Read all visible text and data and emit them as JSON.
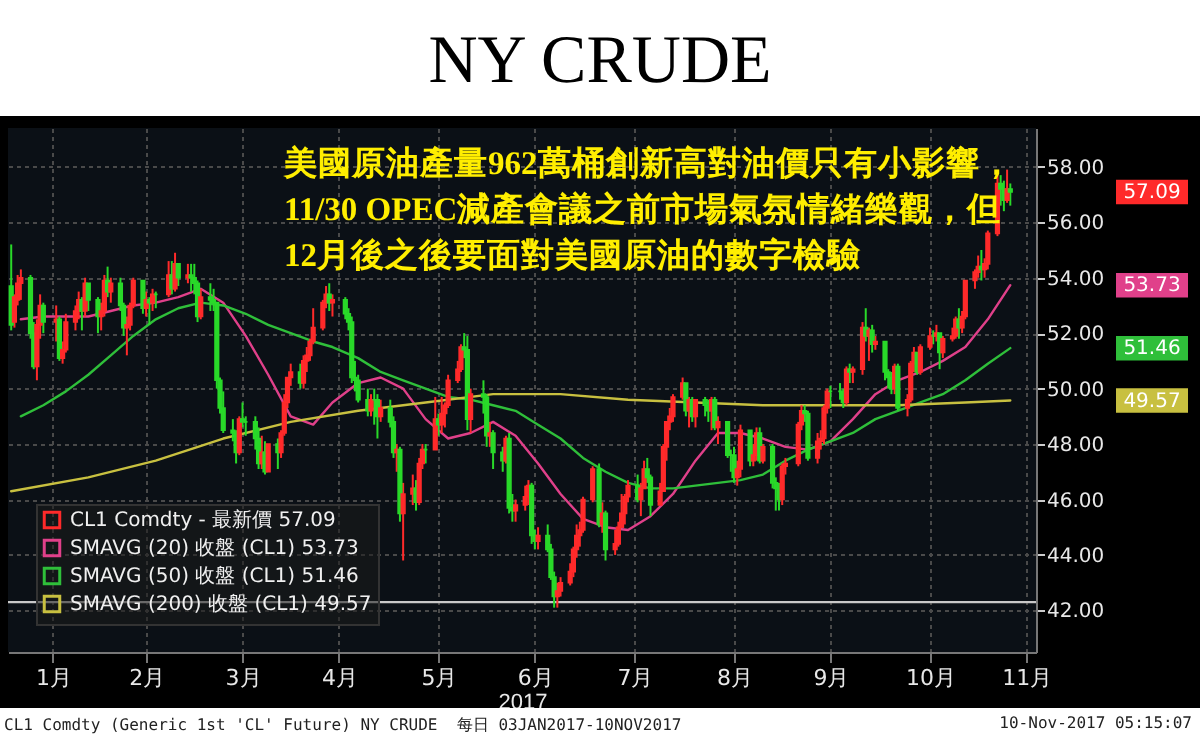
{
  "chart_data": {
    "type": "candlestick",
    "title": "NY CRUDE",
    "xlabel": "2017",
    "annotations": [
      "美國原油產量962萬桶創新高對油價只有小影響，\n11/30 OPEC減產會議之前市場氣氛情緒樂觀，但\n12月後之後要面對美國原油的數字檢驗",
      "CL1 Comdty (Generic 1st 'CL' Future) NY CRUDE  每日 03JAN2017-10NOV2017",
      "10-Nov-2017 05:15:07",
      "57.09",
      "53.73",
      "51.46",
      "49.57"
    ],
    "xlim": [
      "2017-01-02",
      "2017-11-18"
    ],
    "xticks": [
      {
        "value": "2017-01-16",
        "label": "1月"
      },
      {
        "value": "2017-02-14",
        "label": "2月"
      },
      {
        "value": "2017-03-16",
        "label": "3月"
      },
      {
        "value": "2017-04-15",
        "label": "4月"
      },
      {
        "value": "2017-05-16",
        "label": "5月"
      },
      {
        "value": "2017-06-15",
        "label": "6月"
      },
      {
        "value": "2017-07-16",
        "label": "7月"
      },
      {
        "value": "2017-08-16",
        "label": "8月"
      },
      {
        "value": "2017-09-15",
        "label": "9月"
      },
      {
        "value": "2017-10-16",
        "label": "10月"
      },
      {
        "value": "2017-11-15",
        "label": "11月"
      }
    ],
    "ylim": [
      40.5,
      59.4
    ],
    "yticks": [
      {
        "value": 42,
        "label": "42.00"
      },
      {
        "value": 44,
        "label": "44.00"
      },
      {
        "value": 46,
        "label": "46.00"
      },
      {
        "value": 48,
        "label": "48.00"
      },
      {
        "value": 50,
        "label": "50.00"
      },
      {
        "value": 52,
        "label": "52.00"
      },
      {
        "value": 54,
        "label": "54.00"
      },
      {
        "value": 56,
        "label": "56.00"
      },
      {
        "value": 58,
        "label": "58.00"
      }
    ],
    "grid": true,
    "legend": "bottom left",
    "ref_lines": [
      {
        "axis": "y",
        "value": 42.3,
        "color": "#c8c8c8"
      }
    ],
    "series": [
      {
        "type": "candlestick",
        "name": "CL1 Comdty - 最新價 57.09",
        "color": "#ff2a2a",
        "x": [
          "2017-01-03",
          "2017-01-04",
          "2017-01-05",
          "2017-01-06",
          "2017-01-09",
          "2017-01-10",
          "2017-01-11",
          "2017-01-12",
          "2017-01-13",
          "2017-01-17",
          "2017-01-18",
          "2017-01-19",
          "2017-01-20",
          "2017-01-23",
          "2017-01-24",
          "2017-01-25",
          "2017-01-26",
          "2017-01-27",
          "2017-01-30",
          "2017-01-31",
          "2017-02-01",
          "2017-02-02",
          "2017-02-03",
          "2017-02-06",
          "2017-02-07",
          "2017-02-08",
          "2017-02-09",
          "2017-02-10",
          "2017-02-13",
          "2017-02-14",
          "2017-02-15",
          "2017-02-16",
          "2017-02-17",
          "2017-02-21",
          "2017-02-22",
          "2017-02-23",
          "2017-02-24",
          "2017-02-27",
          "2017-02-28",
          "2017-03-01",
          "2017-03-02",
          "2017-03-03",
          "2017-03-06",
          "2017-03-07",
          "2017-03-08",
          "2017-03-09",
          "2017-03-10",
          "2017-03-13",
          "2017-03-14",
          "2017-03-15",
          "2017-03-16",
          "2017-03-17",
          "2017-03-20",
          "2017-03-21",
          "2017-03-22",
          "2017-03-23",
          "2017-03-24",
          "2017-03-27",
          "2017-03-28",
          "2017-03-29",
          "2017-03-30",
          "2017-03-31",
          "2017-04-03",
          "2017-04-04",
          "2017-04-05",
          "2017-04-06",
          "2017-04-07",
          "2017-04-10",
          "2017-04-11",
          "2017-04-12",
          "2017-04-13",
          "2017-04-17",
          "2017-04-18",
          "2017-04-19",
          "2017-04-20",
          "2017-04-21",
          "2017-04-24",
          "2017-04-25",
          "2017-04-26",
          "2017-04-27",
          "2017-04-28",
          "2017-05-01",
          "2017-05-02",
          "2017-05-03",
          "2017-05-04",
          "2017-05-05",
          "2017-05-08",
          "2017-05-09",
          "2017-05-10",
          "2017-05-11",
          "2017-05-12",
          "2017-05-15",
          "2017-05-16",
          "2017-05-17",
          "2017-05-18",
          "2017-05-19",
          "2017-05-22",
          "2017-05-23",
          "2017-05-24",
          "2017-05-25",
          "2017-05-26",
          "2017-05-30",
          "2017-05-31",
          "2017-06-01",
          "2017-06-02",
          "2017-06-05",
          "2017-06-06",
          "2017-06-07",
          "2017-06-08",
          "2017-06-09",
          "2017-06-12",
          "2017-06-13",
          "2017-06-14",
          "2017-06-15",
          "2017-06-16",
          "2017-06-19",
          "2017-06-20",
          "2017-06-21",
          "2017-06-22",
          "2017-06-23",
          "2017-06-26",
          "2017-06-27",
          "2017-06-28",
          "2017-06-29",
          "2017-06-30",
          "2017-07-03",
          "2017-07-05",
          "2017-07-06",
          "2017-07-07",
          "2017-07-10",
          "2017-07-11",
          "2017-07-12",
          "2017-07-13",
          "2017-07-14",
          "2017-07-17",
          "2017-07-18",
          "2017-07-19",
          "2017-07-20",
          "2017-07-21",
          "2017-07-24",
          "2017-07-25",
          "2017-07-26",
          "2017-07-27",
          "2017-07-28",
          "2017-07-31",
          "2017-08-01",
          "2017-08-02",
          "2017-08-03",
          "2017-08-04",
          "2017-08-07",
          "2017-08-08",
          "2017-08-09",
          "2017-08-10",
          "2017-08-11",
          "2017-08-14",
          "2017-08-15",
          "2017-08-16",
          "2017-08-17",
          "2017-08-18",
          "2017-08-21",
          "2017-08-22",
          "2017-08-23",
          "2017-08-24",
          "2017-08-25",
          "2017-08-28",
          "2017-08-29",
          "2017-08-30",
          "2017-08-31",
          "2017-09-01",
          "2017-09-05",
          "2017-09-06",
          "2017-09-07",
          "2017-09-08",
          "2017-09-11",
          "2017-09-12",
          "2017-09-13",
          "2017-09-14",
          "2017-09-15",
          "2017-09-18",
          "2017-09-19",
          "2017-09-20",
          "2017-09-21",
          "2017-09-22",
          "2017-09-25",
          "2017-09-26",
          "2017-09-27",
          "2017-09-28",
          "2017-09-29",
          "2017-10-02",
          "2017-10-03",
          "2017-10-04",
          "2017-10-05",
          "2017-10-06",
          "2017-10-09",
          "2017-10-10",
          "2017-10-11",
          "2017-10-12",
          "2017-10-13",
          "2017-10-16",
          "2017-10-17",
          "2017-10-18",
          "2017-10-19",
          "2017-10-20",
          "2017-10-23",
          "2017-10-24",
          "2017-10-25",
          "2017-10-26",
          "2017-10-27",
          "2017-10-30",
          "2017-10-31",
          "2017-11-01",
          "2017-11-02",
          "2017-11-03",
          "2017-11-06",
          "2017-11-07",
          "2017-11-08",
          "2017-11-09",
          "2017-11-10"
        ],
        "ohlc": [
          [
            53.7,
            55.2,
            52.1,
            52.3
          ],
          [
            52.4,
            53.4,
            52.2,
            53.3
          ],
          [
            53.2,
            54.1,
            53.0,
            53.8
          ],
          [
            53.8,
            54.3,
            53.2,
            54.0
          ],
          [
            54.0,
            54.1,
            51.8,
            52.0
          ],
          [
            52.0,
            52.4,
            50.7,
            50.8
          ],
          [
            50.8,
            52.5,
            50.3,
            52.3
          ],
          [
            52.3,
            53.4,
            51.8,
            53.0
          ],
          [
            53.0,
            53.1,
            52.0,
            52.4
          ],
          [
            52.4,
            53.0,
            51.7,
            52.5
          ],
          [
            52.5,
            52.6,
            51.0,
            51.1
          ],
          [
            51.1,
            51.7,
            50.9,
            51.4
          ],
          [
            51.4,
            52.7,
            51.3,
            52.4
          ],
          [
            52.4,
            53.0,
            52.1,
            52.8
          ],
          [
            52.8,
            53.5,
            52.5,
            53.2
          ],
          [
            53.2,
            53.3,
            52.1,
            52.8
          ],
          [
            52.8,
            54.0,
            52.6,
            53.8
          ],
          [
            53.8,
            53.8,
            52.8,
            53.2
          ],
          [
            53.2,
            53.3,
            52.0,
            52.6
          ],
          [
            52.6,
            53.1,
            52.1,
            52.8
          ],
          [
            52.8,
            54.1,
            52.6,
            53.9
          ],
          [
            53.9,
            54.4,
            53.3,
            53.5
          ],
          [
            53.5,
            54.0,
            53.1,
            53.8
          ],
          [
            53.8,
            54.0,
            52.8,
            53.0
          ],
          [
            53.0,
            53.1,
            51.9,
            52.2
          ],
          [
            52.2,
            52.6,
            51.2,
            52.3
          ],
          [
            52.3,
            53.1,
            52.1,
            53.0
          ],
          [
            53.0,
            54.0,
            52.9,
            53.9
          ],
          [
            53.9,
            53.9,
            52.7,
            52.9
          ],
          [
            52.9,
            53.5,
            52.6,
            53.2
          ],
          [
            53.2,
            53.3,
            52.3,
            53.1
          ],
          [
            53.1,
            53.6,
            52.8,
            53.4
          ],
          [
            53.4,
            53.5,
            52.9,
            53.4
          ],
          [
            53.4,
            54.6,
            53.3,
            54.1
          ],
          [
            54.1,
            54.6,
            53.4,
            53.6
          ],
          [
            53.6,
            54.9,
            53.5,
            54.5
          ],
          [
            54.5,
            54.5,
            53.7,
            54.0
          ],
          [
            54.0,
            54.5,
            53.8,
            54.1
          ],
          [
            54.1,
            54.5,
            53.5,
            54.0
          ],
          [
            54.0,
            54.5,
            53.4,
            53.8
          ],
          [
            53.8,
            53.9,
            52.4,
            52.6
          ],
          [
            52.6,
            53.6,
            52.5,
            53.3
          ],
          [
            53.3,
            53.8,
            52.8,
            53.2
          ],
          [
            53.2,
            53.6,
            52.8,
            53.1
          ],
          [
            53.1,
            53.1,
            50.0,
            50.3
          ],
          [
            50.3,
            50.4,
            49.1,
            49.3
          ],
          [
            49.3,
            49.9,
            48.4,
            48.5
          ],
          [
            48.5,
            48.9,
            48.1,
            48.4
          ],
          [
            48.4,
            48.5,
            47.3,
            47.7
          ],
          [
            47.7,
            49.0,
            47.6,
            48.9
          ],
          [
            48.9,
            49.5,
            48.6,
            48.8
          ],
          [
            48.8,
            49.0,
            48.3,
            48.8
          ],
          [
            48.8,
            49.0,
            47.8,
            48.2
          ],
          [
            48.2,
            48.6,
            47.1,
            47.3
          ],
          [
            47.3,
            48.3,
            47.1,
            47.7
          ],
          [
            47.7,
            48.1,
            46.9,
            47.0
          ],
          [
            47.0,
            48.0,
            47.0,
            48.0
          ],
          [
            48.0,
            48.2,
            47.1,
            47.7
          ],
          [
            47.7,
            48.5,
            47.5,
            48.4
          ],
          [
            48.4,
            49.8,
            48.3,
            49.5
          ],
          [
            49.5,
            50.4,
            49.3,
            50.4
          ],
          [
            50.4,
            50.9,
            50.1,
            50.6
          ],
          [
            50.6,
            50.9,
            50.0,
            50.2
          ],
          [
            50.2,
            51.2,
            50.0,
            51.0
          ],
          [
            51.0,
            51.5,
            50.6,
            51.2
          ],
          [
            51.2,
            51.8,
            51.0,
            51.7
          ],
          [
            51.7,
            52.9,
            51.6,
            52.2
          ],
          [
            52.2,
            53.2,
            52.1,
            53.1
          ],
          [
            53.1,
            53.7,
            52.9,
            53.4
          ],
          [
            53.4,
            53.8,
            52.8,
            53.1
          ],
          [
            53.1,
            53.4,
            52.6,
            53.2
          ],
          [
            53.2,
            53.3,
            52.5,
            52.7
          ],
          [
            52.7,
            52.9,
            52.1,
            52.4
          ],
          [
            52.4,
            52.6,
            50.2,
            50.4
          ],
          [
            50.4,
            51.0,
            49.9,
            50.3
          ],
          [
            50.3,
            50.5,
            49.5,
            49.6
          ],
          [
            49.6,
            50.0,
            49.0,
            49.2
          ],
          [
            49.2,
            49.8,
            49.0,
            49.6
          ],
          [
            49.6,
            50.0,
            48.7,
            49.6
          ],
          [
            49.6,
            49.8,
            48.2,
            49.0
          ],
          [
            49.0,
            49.6,
            48.8,
            49.3
          ],
          [
            49.3,
            49.6,
            48.6,
            48.8
          ],
          [
            48.8,
            49.0,
            47.5,
            47.7
          ],
          [
            47.7,
            48.0,
            47.0,
            47.8
          ],
          [
            47.8,
            47.9,
            45.2,
            45.5
          ],
          [
            45.5,
            46.6,
            43.8,
            46.2
          ],
          [
            46.2,
            46.9,
            45.8,
            46.4
          ],
          [
            46.4,
            46.7,
            45.6,
            45.9
          ],
          [
            45.9,
            47.5,
            45.8,
            47.3
          ],
          [
            47.3,
            48.0,
            47.1,
            47.8
          ],
          [
            47.8,
            48.0,
            47.3,
            47.8
          ],
          [
            47.8,
            49.7,
            47.8,
            48.9
          ],
          [
            48.9,
            49.1,
            48.3,
            48.7
          ],
          [
            48.7,
            49.7,
            48.4,
            49.1
          ],
          [
            49.1,
            49.5,
            48.6,
            49.4
          ],
          [
            49.4,
            50.5,
            49.3,
            50.3
          ],
          [
            50.3,
            51.0,
            50.2,
            50.7
          ],
          [
            50.7,
            51.6,
            50.6,
            51.5
          ],
          [
            51.5,
            52.0,
            51.1,
            51.4
          ],
          [
            51.4,
            51.9,
            48.5,
            48.9
          ],
          [
            48.9,
            50.0,
            48.4,
            49.8
          ],
          [
            49.8,
            50.3,
            49.1,
            49.7
          ],
          [
            49.7,
            49.8,
            47.9,
            48.3
          ],
          [
            48.3,
            48.8,
            47.9,
            48.4
          ],
          [
            48.4,
            48.5,
            47.1,
            47.7
          ],
          [
            47.7,
            47.9,
            47.0,
            47.4
          ],
          [
            47.4,
            48.3,
            47.3,
            48.2
          ],
          [
            48.2,
            48.4,
            45.5,
            45.7
          ],
          [
            45.7,
            46.2,
            45.2,
            45.6
          ],
          [
            45.6,
            46.0,
            45.2,
            45.8
          ],
          [
            45.8,
            46.5,
            45.6,
            46.1
          ],
          [
            46.1,
            46.7,
            45.8,
            46.5
          ],
          [
            46.5,
            46.6,
            44.4,
            44.7
          ],
          [
            44.7,
            44.9,
            44.2,
            44.5
          ],
          [
            44.5,
            45.0,
            44.2,
            44.7
          ],
          [
            44.7,
            45.1,
            44.1,
            44.2
          ],
          [
            44.2,
            44.4,
            43.1,
            43.2
          ],
          [
            43.2,
            43.4,
            42.1,
            42.5
          ],
          [
            42.5,
            43.0,
            42.1,
            42.7
          ],
          [
            42.7,
            43.2,
            42.5,
            43.0
          ],
          [
            43.0,
            43.7,
            42.9,
            43.4
          ],
          [
            43.4,
            44.3,
            43.2,
            44.2
          ],
          [
            44.2,
            45.1,
            43.9,
            44.7
          ],
          [
            44.7,
            45.2,
            44.3,
            44.9
          ],
          [
            44.9,
            46.1,
            44.8,
            46.0
          ],
          [
            46.0,
            47.2,
            45.9,
            47.1
          ],
          [
            47.1,
            47.3,
            45.0,
            45.1
          ],
          [
            45.1,
            45.9,
            44.8,
            45.5
          ],
          [
            45.5,
            45.6,
            43.8,
            44.2
          ],
          [
            44.2,
            44.9,
            44.0,
            44.4
          ],
          [
            44.4,
            45.2,
            44.3,
            45.0
          ],
          [
            45.0,
            46.2,
            45.0,
            45.5
          ],
          [
            45.5,
            46.2,
            45.1,
            46.1
          ],
          [
            46.1,
            46.7,
            45.9,
            46.5
          ],
          [
            46.5,
            46.9,
            45.9,
            46.0
          ],
          [
            46.0,
            46.6,
            45.4,
            46.4
          ],
          [
            46.4,
            47.4,
            46.4,
            47.1
          ],
          [
            47.1,
            47.5,
            46.6,
            46.8
          ],
          [
            46.8,
            46.9,
            45.4,
            45.8
          ],
          [
            45.8,
            46.6,
            45.8,
            46.3
          ],
          [
            46.3,
            48.0,
            46.3,
            47.9
          ],
          [
            47.9,
            48.8,
            47.4,
            48.8
          ],
          [
            48.8,
            49.3,
            48.5,
            49.0
          ],
          [
            49.0,
            49.8,
            48.8,
            49.7
          ],
          [
            49.7,
            50.4,
            49.6,
            50.2
          ],
          [
            50.2,
            50.2,
            49.0,
            49.2
          ],
          [
            49.2,
            49.7,
            48.6,
            49.6
          ],
          [
            49.6,
            49.7,
            48.8,
            49.0
          ],
          [
            49.0,
            49.6,
            48.6,
            49.6
          ],
          [
            49.6,
            49.7,
            49.0,
            49.4
          ],
          [
            49.4,
            49.6,
            48.8,
            49.2
          ],
          [
            49.2,
            49.7,
            48.5,
            49.6
          ],
          [
            49.6,
            49.7,
            48.5,
            48.6
          ],
          [
            48.6,
            49.0,
            48.0,
            48.8
          ],
          [
            48.8,
            48.8,
            47.5,
            47.6
          ],
          [
            47.6,
            47.8,
            47.0,
            47.6
          ],
          [
            47.6,
            47.9,
            46.6,
            46.8
          ],
          [
            46.8,
            47.4,
            46.5,
            47.1
          ],
          [
            47.1,
            48.7,
            46.8,
            48.5
          ],
          [
            48.5,
            48.5,
            47.2,
            47.4
          ],
          [
            47.4,
            48.0,
            47.2,
            47.6
          ],
          [
            47.6,
            48.6,
            47.4,
            48.4
          ],
          [
            48.4,
            48.6,
            47.3,
            47.4
          ],
          [
            47.4,
            48.0,
            47.3,
            47.9
          ],
          [
            47.9,
            48.0,
            46.4,
            46.6
          ],
          [
            46.6,
            46.8,
            45.6,
            46.4
          ],
          [
            46.4,
            46.6,
            45.6,
            46.0
          ],
          [
            46.0,
            47.3,
            45.8,
            47.2
          ],
          [
            47.2,
            47.5,
            46.9,
            47.3
          ],
          [
            47.3,
            48.8,
            47.2,
            48.7
          ],
          [
            48.7,
            49.4,
            48.5,
            49.2
          ],
          [
            49.2,
            49.4,
            48.8,
            49.1
          ],
          [
            49.1,
            49.2,
            47.4,
            47.5
          ],
          [
            47.5,
            48.4,
            47.3,
            48.1
          ],
          [
            48.1,
            48.5,
            47.8,
            48.2
          ],
          [
            48.2,
            49.4,
            48.0,
            49.3
          ],
          [
            49.3,
            50.0,
            49.1,
            49.9
          ],
          [
            49.9,
            50.1,
            49.3,
            49.9
          ],
          [
            49.9,
            50.2,
            49.6,
            49.9
          ],
          [
            49.9,
            50.0,
            49.3,
            49.5
          ],
          [
            49.5,
            50.8,
            49.4,
            50.7
          ],
          [
            50.7,
            50.9,
            50.2,
            50.6
          ],
          [
            50.6,
            50.8,
            50.2,
            50.7
          ],
          [
            50.7,
            52.4,
            50.5,
            52.2
          ],
          [
            52.2,
            52.9,
            51.7,
            51.9
          ],
          [
            51.9,
            52.2,
            51.0,
            52.1
          ],
          [
            52.1,
            52.3,
            51.3,
            51.6
          ],
          [
            51.6,
            51.9,
            51.4,
            51.7
          ],
          [
            51.7,
            51.7,
            50.3,
            50.6
          ],
          [
            50.6,
            50.7,
            50.0,
            50.4
          ],
          [
            50.4,
            50.6,
            49.8,
            50.0
          ],
          [
            50.0,
            50.9,
            49.8,
            50.8
          ],
          [
            50.8,
            50.9,
            49.2,
            49.3
          ],
          [
            49.3,
            49.8,
            49.0,
            49.6
          ],
          [
            49.6,
            51.0,
            49.5,
            50.9
          ],
          [
            50.9,
            51.5,
            50.6,
            51.3
          ],
          [
            51.3,
            51.3,
            50.5,
            50.6
          ],
          [
            50.6,
            51.6,
            50.5,
            51.5
          ],
          [
            51.5,
            52.2,
            51.4,
            51.9
          ],
          [
            51.9,
            52.1,
            51.6,
            51.9
          ],
          [
            51.9,
            52.3,
            51.7,
            52.0
          ],
          [
            52.0,
            52.0,
            50.7,
            51.3
          ],
          [
            51.3,
            51.9,
            51.1,
            51.8
          ],
          [
            51.8,
            52.2,
            51.7,
            51.9
          ],
          [
            51.9,
            52.6,
            51.8,
            52.5
          ],
          [
            52.5,
            52.9,
            51.8,
            52.2
          ],
          [
            52.2,
            52.8,
            52.0,
            52.6
          ],
          [
            52.6,
            53.9,
            52.5,
            53.9
          ],
          [
            53.9,
            54.3,
            53.6,
            54.2
          ],
          [
            54.2,
            54.8,
            54.0,
            54.4
          ],
          [
            54.4,
            55.0,
            53.9,
            54.3
          ],
          [
            54.3,
            54.7,
            54.0,
            54.5
          ],
          [
            54.5,
            55.7,
            54.3,
            55.6
          ],
          [
            55.6,
            57.7,
            55.5,
            57.4
          ],
          [
            57.4,
            57.7,
            56.6,
            57.2
          ],
          [
            57.2,
            57.5,
            56.4,
            56.8
          ],
          [
            56.8,
            57.9,
            56.7,
            57.2
          ],
          [
            57.2,
            57.4,
            56.6,
            57.09
          ]
        ],
        "colors": [
          "#29d929",
          "#ff2a2a",
          "#ff2a2a",
          "#ff2a2a",
          "#29d929",
          "#29d929",
          "#ff2a2a",
          "#ff2a2a",
          "#29d929",
          "#ff2a2a",
          "#29d929",
          "#ff2a2a",
          "#ff2a2a",
          "#ff2a2a",
          "#ff2a2a",
          "#29d929",
          "#ff2a2a",
          "#29d929",
          "#29d929",
          "#ff2a2a",
          "#ff2a2a",
          "#29d929",
          "#ff2a2a",
          "#29d929",
          "#29d929",
          "#ff2a2a",
          "#ff2a2a",
          "#ff2a2a",
          "#29d929",
          "#ff2a2a",
          "#29d929",
          "#ff2a2a",
          "#29d929",
          "#ff2a2a",
          "#29d929",
          "#ff2a2a",
          "#29d929",
          "#ff2a2a",
          "#29d929",
          "#29d929",
          "#29d929",
          "#ff2a2a",
          "#29d929",
          "#29d929",
          "#29d929",
          "#29d929",
          "#29d929",
          "#29d929",
          "#29d929",
          "#ff2a2a",
          "#29d929",
          "#29d929",
          "#29d929",
          "#29d929",
          "#ff2a2a",
          "#29d929",
          "#ff2a2a",
          "#29d929",
          "#ff2a2a",
          "#ff2a2a",
          "#ff2a2a",
          "#ff2a2a",
          "#29d929",
          "#ff2a2a",
          "#ff2a2a",
          "#ff2a2a",
          "#ff2a2a",
          "#ff2a2a",
          "#ff2a2a",
          "#29d929",
          "#ff2a2a",
          "#29d929",
          "#29d929",
          "#29d929",
          "#29d929",
          "#29d929",
          "#29d929",
          "#ff2a2a",
          "#29d929",
          "#29d929",
          "#ff2a2a",
          "#29d929",
          "#29d929",
          "#ff2a2a",
          "#29d929",
          "#ff2a2a",
          "#ff2a2a",
          "#29d929",
          "#ff2a2a",
          "#ff2a2a",
          "#29d929",
          "#ff2a2a",
          "#29d929",
          "#ff2a2a",
          "#ff2a2a",
          "#ff2a2a",
          "#ff2a2a",
          "#ff2a2a",
          "#29d929",
          "#29d929",
          "#ff2a2a",
          "#29d929",
          "#29d929",
          "#ff2a2a",
          "#29d929",
          "#29d929",
          "#ff2a2a",
          "#29d929",
          "#29d929",
          "#ff2a2a",
          "#ff2a2a",
          "#ff2a2a",
          "#29d929",
          "#29d929",
          "#ff2a2a",
          "#29d929",
          "#29d929",
          "#29d929",
          "#ff2a2a",
          "#ff2a2a",
          "#ff2a2a",
          "#ff2a2a",
          "#ff2a2a",
          "#ff2a2a",
          "#ff2a2a",
          "#ff2a2a",
          "#29d929",
          "#ff2a2a",
          "#29d929",
          "#ff2a2a",
          "#ff2a2a",
          "#ff2a2a",
          "#ff2a2a",
          "#ff2a2a",
          "#29d929",
          "#ff2a2a",
          "#ff2a2a",
          "#29d929",
          "#29d929",
          "#ff2a2a",
          "#ff2a2a",
          "#ff2a2a",
          "#ff2a2a",
          "#ff2a2a",
          "#ff2a2a",
          "#29d929",
          "#ff2a2a",
          "#29d929",
          "#ff2a2a",
          "#29d929",
          "#29d929",
          "#ff2a2a",
          "#29d929",
          "#ff2a2a",
          "#29d929",
          "#29d929",
          "#29d929",
          "#ff2a2a",
          "#ff2a2a",
          "#29d929",
          "#ff2a2a",
          "#ff2a2a",
          "#29d929",
          "#ff2a2a",
          "#29d929",
          "#29d929",
          "#29d929",
          "#ff2a2a",
          "#ff2a2a",
          "#ff2a2a",
          "#ff2a2a",
          "#29d929",
          "#29d929",
          "#ff2a2a",
          "#ff2a2a",
          "#ff2a2a",
          "#ff2a2a",
          "#29d929",
          "#29d929",
          "#29d929",
          "#ff2a2a",
          "#29d929",
          "#ff2a2a",
          "#ff2a2a",
          "#29d929",
          "#ff2a2a",
          "#29d929",
          "#ff2a2a",
          "#29d929",
          "#29d929",
          "#29d929",
          "#ff2a2a",
          "#29d929",
          "#ff2a2a",
          "#ff2a2a",
          "#ff2a2a",
          "#29d929",
          "#ff2a2a",
          "#ff2a2a",
          "#29d929",
          "#ff2a2a",
          "#29d929",
          "#ff2a2a",
          "#ff2a2a",
          "#ff2a2a",
          "#29d929",
          "#ff2a2a",
          "#ff2a2a",
          "#ff2a2a",
          "#ff2a2a",
          "#29d929",
          "#ff2a2a",
          "#ff2a2a",
          "#ff2a2a",
          "#29d929",
          "#29d929",
          "#ff2a2a",
          "#29d929"
        ]
      },
      {
        "type": "line",
        "name": "SMAVG (20) 收盤 (CL1) 53.73",
        "color": "#e0408a",
        "x": [
          "2017-01-06",
          "2017-01-13",
          "2017-01-20",
          "2017-01-27",
          "2017-02-03",
          "2017-02-10",
          "2017-02-17",
          "2017-02-24",
          "2017-03-03",
          "2017-03-10",
          "2017-03-17",
          "2017-03-24",
          "2017-03-31",
          "2017-04-07",
          "2017-04-13",
          "2017-04-21",
          "2017-04-28",
          "2017-05-05",
          "2017-05-12",
          "2017-05-19",
          "2017-05-26",
          "2017-06-02",
          "2017-06-09",
          "2017-06-16",
          "2017-06-23",
          "2017-06-30",
          "2017-07-07",
          "2017-07-14",
          "2017-07-21",
          "2017-07-28",
          "2017-08-04",
          "2017-08-11",
          "2017-08-18",
          "2017-08-25",
          "2017-09-01",
          "2017-09-08",
          "2017-09-15",
          "2017-09-22",
          "2017-09-29",
          "2017-10-06",
          "2017-10-13",
          "2017-10-20",
          "2017-10-27",
          "2017-11-03",
          "2017-11-10"
        ],
        "values": [
          52.5,
          52.6,
          52.6,
          52.6,
          52.8,
          53.0,
          53.1,
          53.3,
          53.6,
          53.1,
          51.9,
          50.5,
          49.0,
          48.7,
          49.5,
          50.2,
          50.4,
          50.0,
          48.9,
          48.2,
          48.4,
          48.8,
          48.3,
          47.3,
          46.2,
          45.3,
          45.0,
          44.9,
          45.4,
          46.2,
          47.4,
          48.4,
          48.4,
          48.2,
          47.9,
          47.8,
          48.1,
          48.9,
          49.8,
          50.3,
          50.6,
          51.0,
          51.5,
          52.5,
          53.73
        ]
      },
      {
        "type": "line",
        "name": "SMAVG (50) 收盤 (CL1) 51.46",
        "color": "#2fbf3a",
        "x": [
          "2017-01-06",
          "2017-01-13",
          "2017-01-20",
          "2017-01-27",
          "2017-02-03",
          "2017-02-10",
          "2017-02-17",
          "2017-02-24",
          "2017-03-03",
          "2017-03-10",
          "2017-03-17",
          "2017-03-24",
          "2017-03-31",
          "2017-04-07",
          "2017-04-13",
          "2017-04-21",
          "2017-04-28",
          "2017-05-05",
          "2017-05-12",
          "2017-05-19",
          "2017-05-26",
          "2017-06-02",
          "2017-06-09",
          "2017-06-16",
          "2017-06-23",
          "2017-06-30",
          "2017-07-07",
          "2017-07-14",
          "2017-07-21",
          "2017-07-28",
          "2017-08-04",
          "2017-08-11",
          "2017-08-18",
          "2017-08-25",
          "2017-09-01",
          "2017-09-08",
          "2017-09-15",
          "2017-09-22",
          "2017-09-29",
          "2017-10-06",
          "2017-10-13",
          "2017-10-20",
          "2017-10-27",
          "2017-11-03",
          "2017-11-10"
        ],
        "values": [
          49.0,
          49.4,
          49.9,
          50.5,
          51.2,
          51.9,
          52.5,
          52.9,
          53.1,
          53.0,
          52.7,
          52.3,
          52.0,
          51.7,
          51.5,
          51.1,
          50.6,
          50.3,
          50.0,
          49.7,
          49.6,
          49.4,
          49.2,
          48.7,
          48.2,
          47.5,
          47.0,
          46.6,
          46.4,
          46.4,
          46.5,
          46.6,
          46.7,
          46.9,
          47.4,
          47.8,
          48.1,
          48.4,
          48.9,
          49.2,
          49.5,
          49.8,
          50.3,
          50.9,
          51.46
        ]
      },
      {
        "type": "line",
        "name": "SMAVG (200) 收盤 (CL1) 49.57",
        "color": "#c8c040",
        "x": [
          "2017-01-03",
          "2017-01-27",
          "2017-02-17",
          "2017-03-10",
          "2017-03-31",
          "2017-04-21",
          "2017-05-12",
          "2017-06-02",
          "2017-06-23",
          "2017-07-14",
          "2017-08-04",
          "2017-08-25",
          "2017-09-15",
          "2017-10-06",
          "2017-10-27",
          "2017-11-10"
        ],
        "values": [
          46.3,
          46.8,
          47.4,
          48.2,
          48.8,
          49.2,
          49.5,
          49.8,
          49.8,
          49.6,
          49.5,
          49.4,
          49.4,
          49.4,
          49.5,
          49.57
        ]
      }
    ]
  }
}
